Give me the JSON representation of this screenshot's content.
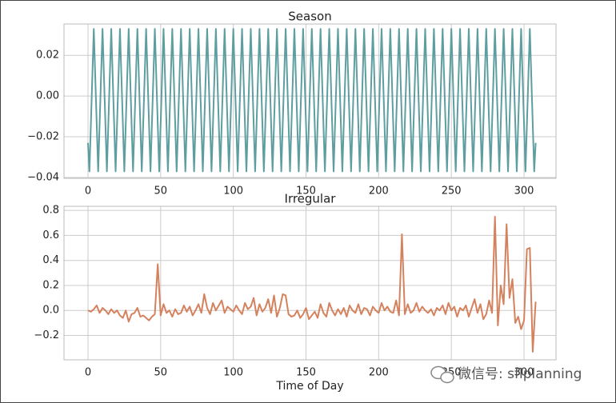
{
  "chart_data": [
    {
      "type": "line",
      "title": "Season",
      "xlim": [
        -16.5,
        322
      ],
      "xticks": [
        0,
        50,
        100,
        150,
        200,
        250,
        300
      ],
      "ylim": [
        -0.0404,
        0.0354
      ],
      "yticks": [
        {
          "value": -0.04,
          "label": "−0.04"
        },
        {
          "value": -0.02,
          "label": "−0.02"
        },
        {
          "value": 0,
          "label": "0.00"
        },
        0.02
      ],
      "grid": true,
      "series": [
        {
          "color": "#5f9ea0",
          "x": [
            0,
            1,
            4,
            7,
            10,
            13,
            16,
            19,
            22,
            25,
            28,
            31,
            34,
            37,
            40,
            43,
            46,
            49,
            52,
            55,
            58,
            61,
            64,
            67,
            70,
            73,
            76,
            79,
            82,
            85,
            88,
            91,
            94,
            97,
            100,
            103,
            106,
            109,
            112,
            115,
            118,
            121,
            124,
            127,
            130,
            133,
            136,
            139,
            142,
            145,
            148,
            151,
            154,
            157,
            160,
            163,
            166,
            169,
            172,
            175,
            178,
            181,
            184,
            187,
            190,
            193,
            196,
            199,
            202,
            205,
            208,
            211,
            214,
            217,
            220,
            223,
            226,
            229,
            232,
            235,
            238,
            241,
            244,
            247,
            250,
            253,
            256,
            259,
            262,
            265,
            268,
            271,
            274,
            277,
            280,
            283,
            286,
            289,
            292,
            295,
            298,
            301,
            304,
            307,
            308
          ],
          "values": [
            -0.023,
            -0.037,
            0.033,
            -0.037,
            0.033,
            -0.037,
            0.033,
            -0.037,
            0.033,
            -0.037,
            0.033,
            -0.037,
            0.033,
            -0.037,
            0.033,
            -0.037,
            0.033,
            -0.037,
            0.033,
            -0.037,
            0.033,
            -0.037,
            0.033,
            -0.037,
            0.033,
            -0.037,
            0.033,
            -0.037,
            0.033,
            -0.037,
            0.033,
            -0.037,
            0.033,
            -0.037,
            0.033,
            -0.037,
            0.033,
            -0.037,
            0.033,
            -0.037,
            0.033,
            -0.037,
            0.033,
            -0.037,
            0.033,
            -0.037,
            0.033,
            -0.037,
            0.033,
            -0.037,
            0.033,
            -0.037,
            0.033,
            -0.037,
            0.033,
            -0.037,
            0.033,
            -0.037,
            0.033,
            -0.037,
            0.033,
            -0.037,
            0.033,
            -0.037,
            0.033,
            -0.037,
            0.033,
            -0.037,
            0.033,
            -0.037,
            0.033,
            -0.037,
            0.033,
            -0.037,
            0.033,
            -0.037,
            0.033,
            -0.037,
            0.033,
            -0.037,
            0.033,
            -0.037,
            0.033,
            -0.037,
            0.033,
            -0.037,
            0.033,
            -0.037,
            0.033,
            -0.037,
            0.033,
            -0.037,
            0.033,
            -0.037,
            0.033,
            -0.037,
            0.033,
            -0.037,
            0.033,
            -0.037,
            0.033,
            -0.037,
            0.033,
            -0.037,
            -0.023
          ]
        }
      ]
    },
    {
      "type": "line",
      "title": "Irregular",
      "xlabel": "Time of Day",
      "xlim": [
        -16.5,
        322
      ],
      "xticks": [
        0,
        50,
        100,
        150,
        200,
        250,
        300
      ],
      "ylim": [
        -0.395,
        0.833
      ],
      "yticks": [
        {
          "value": -0.2,
          "label": "−0.2"
        },
        {
          "value": 0,
          "label": "0.0"
        },
        0.2,
        0.4,
        0.6,
        0.8
      ],
      "grid": true,
      "series": [
        {
          "color": "#d4825e",
          "x": [
            0,
            2,
            4,
            6,
            8,
            10,
            12,
            14,
            16,
            18,
            20,
            22,
            24,
            26,
            28,
            30,
            32,
            34,
            36,
            38,
            40,
            42,
            44,
            46,
            48,
            50,
            52,
            54,
            56,
            58,
            60,
            62,
            64,
            66,
            68,
            70,
            72,
            74,
            76,
            78,
            80,
            82,
            84,
            86,
            88,
            90,
            92,
            94,
            96,
            98,
            100,
            102,
            104,
            106,
            108,
            110,
            112,
            114,
            116,
            118,
            120,
            122,
            124,
            126,
            128,
            130,
            132,
            134,
            136,
            138,
            140,
            142,
            144,
            146,
            148,
            150,
            152,
            154,
            156,
            158,
            160,
            162,
            164,
            166,
            168,
            170,
            172,
            174,
            176,
            178,
            180,
            182,
            184,
            186,
            188,
            190,
            192,
            194,
            196,
            198,
            200,
            202,
            204,
            206,
            208,
            210,
            212,
            214,
            216,
            218,
            220,
            222,
            224,
            226,
            228,
            230,
            232,
            234,
            236,
            238,
            240,
            242,
            244,
            246,
            248,
            250,
            252,
            254,
            256,
            258,
            260,
            262,
            264,
            266,
            268,
            270,
            272,
            274,
            276,
            278,
            280,
            282,
            284,
            286,
            288,
            290,
            292,
            294,
            296,
            298,
            300,
            302,
            304,
            306,
            308
          ],
          "values": [
            0,
            -0.01,
            0.01,
            0.04,
            -0.02,
            0.02,
            0.0,
            -0.03,
            0.01,
            -0.02,
            0.0,
            -0.04,
            -0.06,
            0.0,
            -0.09,
            -0.03,
            -0.02,
            0.02,
            -0.05,
            -0.04,
            -0.06,
            -0.08,
            -0.05,
            -0.03,
            0.37,
            -0.04,
            0.05,
            -0.02,
            0.0,
            -0.05,
            0.01,
            -0.03,
            -0.02,
            0.04,
            -0.01,
            0.03,
            -0.04,
            0.0,
            0.05,
            -0.02,
            0.13,
            0.02,
            -0.03,
            0.06,
            0.0,
            0.04,
            0.08,
            -0.02,
            0.03,
            0.01,
            -0.01,
            0.04,
            0.0,
            -0.03,
            0.06,
            0.01,
            0.03,
            0.1,
            -0.04,
            0.05,
            -0.01,
            0.02,
            0.09,
            -0.02,
            0.12,
            -0.05,
            0.02,
            0.13,
            0.12,
            -0.03,
            -0.05,
            -0.04,
            0.0,
            -0.06,
            -0.03,
            0.02,
            -0.07,
            -0.04,
            -0.01,
            -0.06,
            0.05,
            -0.02,
            -0.05,
            0.06,
            0.0,
            -0.04,
            0.01,
            -0.03,
            0.02,
            -0.05,
            0.04,
            0.0,
            -0.02,
            0.05,
            -0.03,
            0.02,
            0.01,
            -0.04,
            0.03,
            0.0,
            -0.02,
            0.06,
            0.0,
            0.03,
            -0.01,
            -0.02,
            0.08,
            -0.04,
            0.61,
            -0.03,
            0.05,
            -0.02,
            0.0,
            0.06,
            -0.01,
            0.03,
            0.0,
            -0.02,
            0.01,
            -0.04,
            0.02,
            0.0,
            0.04,
            -0.03,
            0.06,
            0.0,
            0.03,
            -0.05,
            0.02,
            0.0,
            0.04,
            -0.05,
            0.02,
            0.09,
            -0.02,
            0.05,
            -0.07,
            -0.03,
            0.08,
            -0.02,
            0.75,
            -0.12,
            0.2,
            0.05,
            0.69,
            0.1,
            0.25,
            -0.1,
            -0.05,
            -0.15,
            -0.08,
            0.49,
            0.5,
            -0.33,
            0.07
          ]
        }
      ]
    }
  ],
  "watermark": "微信号: sflplanning"
}
